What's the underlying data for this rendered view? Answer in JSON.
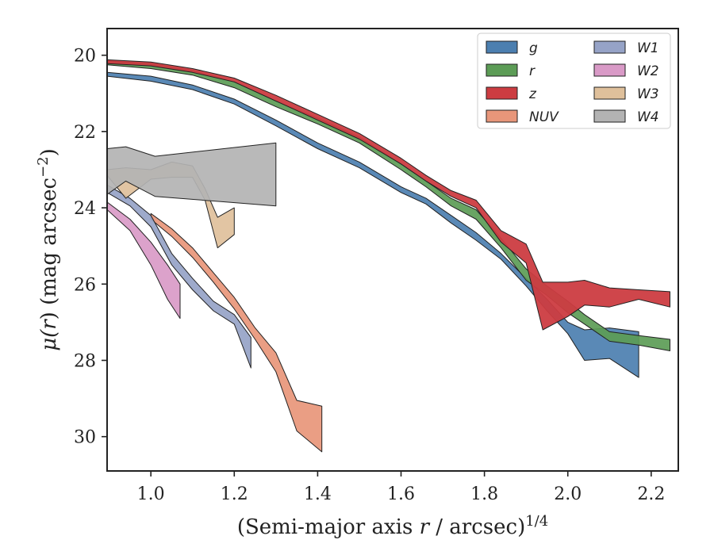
{
  "chart_data": {
    "type": "area",
    "xlabel_parts": [
      "(Semi-major axis ",
      "r",
      " / arcsec)",
      "1/4"
    ],
    "ylabel_parts": [
      "μ(",
      "r",
      ") (mag arcsec",
      "−2",
      ")"
    ],
    "xlim": [
      0.895,
      2.265
    ],
    "ylim": [
      30.9,
      19.3
    ],
    "y_inverted": true,
    "x_ticks": [
      1.0,
      1.2,
      1.4,
      1.6,
      1.8,
      2.0,
      2.2
    ],
    "x_tick_labels": [
      "1.0",
      "1.2",
      "1.4",
      "1.6",
      "1.8",
      "2.0",
      "2.2"
    ],
    "y_ticks": [
      20,
      22,
      24,
      26,
      28,
      30
    ],
    "y_tick_labels": [
      "20",
      "22",
      "24",
      "26",
      "28",
      "30"
    ],
    "grid": false,
    "legend_position": "top-right",
    "legend_columns": 2,
    "series": [
      {
        "name": "g",
        "color": "#4c7fb0",
        "upper": [
          [
            0.895,
            20.45
          ],
          [
            1.0,
            20.55
          ],
          [
            1.1,
            20.78
          ],
          [
            1.2,
            21.15
          ],
          [
            1.3,
            21.7
          ],
          [
            1.4,
            22.3
          ],
          [
            1.5,
            22.8
          ],
          [
            1.6,
            23.45
          ],
          [
            1.66,
            23.75
          ],
          [
            1.72,
            24.2
          ],
          [
            1.78,
            24.65
          ],
          [
            1.84,
            25.2
          ],
          [
            1.9,
            25.85
          ],
          [
            1.95,
            26.4
          ],
          [
            2.0,
            27.0
          ],
          [
            2.04,
            27.2
          ],
          [
            2.1,
            27.15
          ],
          [
            2.17,
            27.25
          ]
        ],
        "lower": [
          [
            0.895,
            20.55
          ],
          [
            1.0,
            20.68
          ],
          [
            1.1,
            20.9
          ],
          [
            1.2,
            21.28
          ],
          [
            1.3,
            21.85
          ],
          [
            1.4,
            22.45
          ],
          [
            1.5,
            22.95
          ],
          [
            1.6,
            23.6
          ],
          [
            1.66,
            23.9
          ],
          [
            1.72,
            24.4
          ],
          [
            1.78,
            24.85
          ],
          [
            1.84,
            25.35
          ],
          [
            1.9,
            26.05
          ],
          [
            1.95,
            26.7
          ],
          [
            2.0,
            27.3
          ],
          [
            2.04,
            28.0
          ],
          [
            2.1,
            27.95
          ],
          [
            2.17,
            28.45
          ]
        ]
      },
      {
        "name": "r",
        "color": "#5c9c56",
        "upper": [
          [
            0.895,
            20.15
          ],
          [
            1.0,
            20.22
          ],
          [
            1.1,
            20.4
          ],
          [
            1.2,
            20.7
          ],
          [
            1.3,
            21.2
          ],
          [
            1.4,
            21.65
          ],
          [
            1.5,
            22.15
          ],
          [
            1.6,
            22.85
          ],
          [
            1.66,
            23.3
          ],
          [
            1.72,
            23.75
          ],
          [
            1.78,
            24.05
          ],
          [
            1.84,
            24.8
          ],
          [
            1.9,
            25.6
          ],
          [
            1.95,
            26.05
          ],
          [
            2.0,
            26.45
          ],
          [
            2.04,
            26.8
          ],
          [
            2.1,
            27.25
          ],
          [
            2.17,
            27.35
          ],
          [
            2.245,
            27.45
          ]
        ],
        "lower": [
          [
            0.895,
            20.25
          ],
          [
            1.0,
            20.35
          ],
          [
            1.1,
            20.52
          ],
          [
            1.2,
            20.85
          ],
          [
            1.3,
            21.35
          ],
          [
            1.4,
            21.8
          ],
          [
            1.5,
            22.3
          ],
          [
            1.6,
            23.0
          ],
          [
            1.66,
            23.45
          ],
          [
            1.72,
            23.95
          ],
          [
            1.78,
            24.3
          ],
          [
            1.84,
            25.05
          ],
          [
            1.9,
            25.9
          ],
          [
            1.95,
            26.3
          ],
          [
            2.0,
            26.75
          ],
          [
            2.04,
            27.05
          ],
          [
            2.1,
            27.5
          ],
          [
            2.17,
            27.6
          ],
          [
            2.245,
            27.75
          ]
        ]
      },
      {
        "name": "z",
        "color": "#cc3c41",
        "upper": [
          [
            0.895,
            20.12
          ],
          [
            1.0,
            20.18
          ],
          [
            1.1,
            20.35
          ],
          [
            1.2,
            20.6
          ],
          [
            1.3,
            21.05
          ],
          [
            1.4,
            21.55
          ],
          [
            1.5,
            22.05
          ],
          [
            1.6,
            22.7
          ],
          [
            1.66,
            23.15
          ],
          [
            1.72,
            23.55
          ],
          [
            1.78,
            23.8
          ],
          [
            1.84,
            24.6
          ],
          [
            1.9,
            24.95
          ],
          [
            1.94,
            25.95
          ],
          [
            2.0,
            25.95
          ],
          [
            2.04,
            25.9
          ],
          [
            2.1,
            26.1
          ],
          [
            2.17,
            26.15
          ],
          [
            2.245,
            26.2
          ]
        ],
        "lower": [
          [
            0.895,
            20.22
          ],
          [
            1.0,
            20.28
          ],
          [
            1.1,
            20.45
          ],
          [
            1.2,
            20.7
          ],
          [
            1.3,
            21.2
          ],
          [
            1.4,
            21.7
          ],
          [
            1.5,
            22.2
          ],
          [
            1.6,
            22.85
          ],
          [
            1.66,
            23.3
          ],
          [
            1.72,
            23.7
          ],
          [
            1.78,
            24.0
          ],
          [
            1.84,
            24.9
          ],
          [
            1.9,
            25.45
          ],
          [
            1.94,
            27.2
          ],
          [
            2.0,
            26.85
          ],
          [
            2.04,
            26.55
          ],
          [
            2.1,
            26.6
          ],
          [
            2.17,
            26.4
          ],
          [
            2.245,
            26.6
          ]
        ]
      },
      {
        "name": "NUV",
        "color": "#e8967a",
        "upper": [
          [
            1.0,
            24.15
          ],
          [
            1.05,
            24.55
          ],
          [
            1.1,
            25.05
          ],
          [
            1.15,
            25.7
          ],
          [
            1.2,
            26.35
          ],
          [
            1.25,
            27.15
          ],
          [
            1.3,
            27.8
          ],
          [
            1.35,
            29.05
          ],
          [
            1.41,
            29.2
          ]
        ],
        "lower": [
          [
            1.0,
            24.3
          ],
          [
            1.05,
            24.75
          ],
          [
            1.1,
            25.3
          ],
          [
            1.15,
            25.95
          ],
          [
            1.2,
            26.65
          ],
          [
            1.25,
            27.45
          ],
          [
            1.3,
            28.3
          ],
          [
            1.35,
            29.85
          ],
          [
            1.41,
            30.4
          ]
        ]
      },
      {
        "name": "W1",
        "color": "#96a3c7",
        "upper": [
          [
            0.895,
            23.4
          ],
          [
            0.95,
            23.75
          ],
          [
            1.0,
            24.2
          ],
          [
            1.05,
            25.2
          ],
          [
            1.1,
            25.85
          ],
          [
            1.15,
            26.45
          ],
          [
            1.2,
            26.8
          ],
          [
            1.24,
            27.4
          ]
        ],
        "lower": [
          [
            0.895,
            23.6
          ],
          [
            0.95,
            23.95
          ],
          [
            1.0,
            24.5
          ],
          [
            1.05,
            25.5
          ],
          [
            1.1,
            26.15
          ],
          [
            1.15,
            26.7
          ],
          [
            1.2,
            27.05
          ],
          [
            1.24,
            28.2
          ]
        ]
      },
      {
        "name": "W2",
        "color": "#d99ac7",
        "upper": [
          [
            0.895,
            23.85
          ],
          [
            0.95,
            24.3
          ],
          [
            1.0,
            24.9
          ],
          [
            1.04,
            25.5
          ],
          [
            1.07,
            26.0
          ]
        ],
        "lower": [
          [
            0.895,
            24.05
          ],
          [
            0.95,
            24.6
          ],
          [
            1.0,
            25.5
          ],
          [
            1.04,
            26.4
          ],
          [
            1.07,
            26.9
          ]
        ]
      },
      {
        "name": "W3",
        "color": "#dfc09b",
        "upper": [
          [
            0.895,
            23.0
          ],
          [
            0.94,
            22.95
          ],
          [
            1.0,
            23.0
          ],
          [
            1.05,
            22.8
          ],
          [
            1.1,
            22.9
          ],
          [
            1.13,
            23.5
          ],
          [
            1.16,
            24.25
          ],
          [
            1.2,
            24.0
          ]
        ],
        "lower": [
          [
            0.895,
            23.15
          ],
          [
            0.94,
            23.75
          ],
          [
            1.0,
            23.25
          ],
          [
            1.05,
            23.2
          ],
          [
            1.1,
            23.2
          ],
          [
            1.13,
            23.8
          ],
          [
            1.16,
            25.05
          ],
          [
            1.2,
            24.7
          ]
        ]
      },
      {
        "name": "W4",
        "color": "#b3b3b3",
        "upper": [
          [
            0.895,
            22.45
          ],
          [
            0.94,
            22.4
          ],
          [
            1.01,
            22.65
          ],
          [
            1.3,
            22.3
          ]
        ],
        "lower": [
          [
            0.895,
            23.65
          ],
          [
            0.94,
            23.3
          ],
          [
            1.01,
            23.7
          ],
          [
            1.3,
            23.95
          ]
        ]
      }
    ]
  }
}
